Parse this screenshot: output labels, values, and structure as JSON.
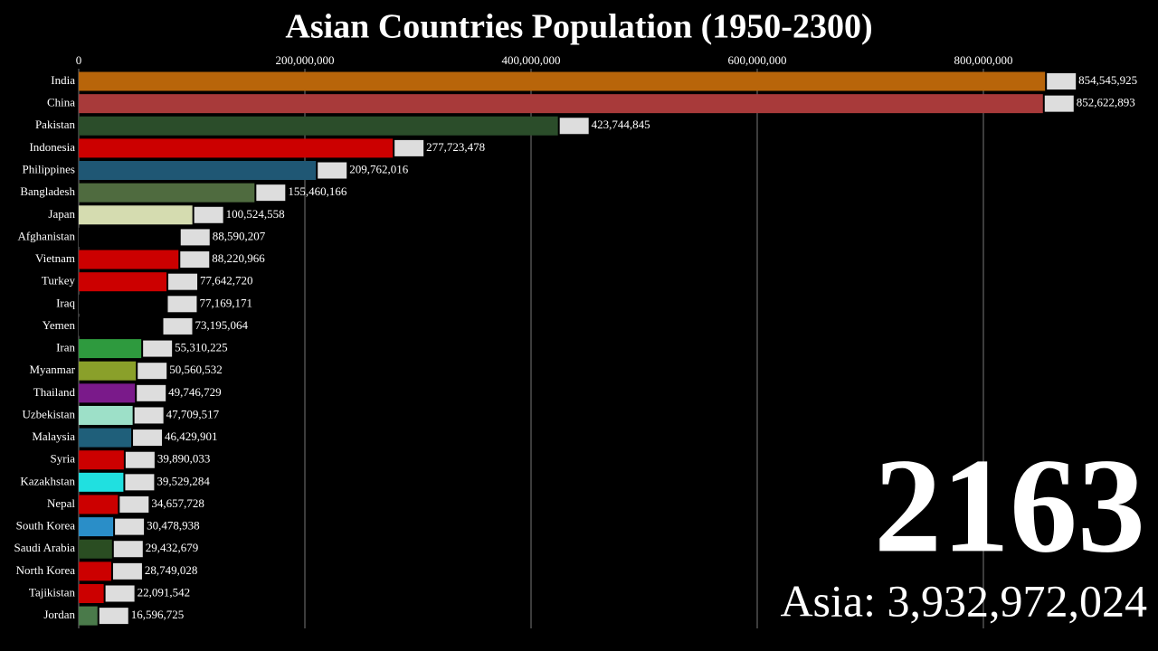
{
  "chart_data": {
    "type": "bar",
    "orientation": "horizontal",
    "title": "Asian Countries Population (1950-2300)",
    "year": "2163",
    "total_label": "Asia: 3,932,972,024",
    "categories": [
      "India",
      "China",
      "Pakistan",
      "Indonesia",
      "Philippines",
      "Bangladesh",
      "Japan",
      "Afghanistan",
      "Vietnam",
      "Turkey",
      "Iraq",
      "Yemen",
      "Iran",
      "Myanmar",
      "Thailand",
      "Uzbekistan",
      "Malaysia",
      "Syria",
      "Kazakhstan",
      "Nepal",
      "South Korea",
      "Saudi Arabia",
      "North Korea",
      "Tajikistan",
      "Jordan"
    ],
    "values": [
      854545925,
      852622893,
      423744845,
      277723478,
      209762016,
      155460166,
      100524558,
      88590207,
      88220966,
      77642720,
      77169171,
      73195064,
      55310225,
      50560532,
      49746729,
      47709517,
      46429901,
      39890033,
      39529284,
      34657728,
      30478938,
      29432679,
      28749028,
      22091542,
      16596725
    ],
    "value_labels": [
      "854,545,925",
      "852,622,893",
      "423,744,845",
      "277,723,478",
      "209,762,016",
      "155,460,166",
      "100,524,558",
      "88,590,207",
      "88,220,966",
      "77,642,720",
      "77,169,171",
      "73,195,064",
      "55,310,225",
      "50,560,532",
      "49,746,729",
      "47,709,517",
      "46,429,901",
      "39,890,033",
      "39,529,284",
      "34,657,728",
      "30,478,938",
      "29,432,679",
      "28,749,028",
      "22,091,542",
      "16,596,725"
    ],
    "colors": [
      "#b8650a",
      "#a83a3a",
      "#2b4d2a",
      "#cc0000",
      "#1f5774",
      "#4f6b3f",
      "#d5dcb0",
      "#000000",
      "#cc0000",
      "#cc0000",
      "#000000",
      "#000000",
      "#2e9a3e",
      "#8aa02a",
      "#7a1a8a",
      "#9de0c8",
      "#1f5f7a",
      "#cc0000",
      "#20e0e0",
      "#cc0000",
      "#2a8ec8",
      "#2a4d22",
      "#cc0000",
      "#cc0000",
      "#4a7a4a"
    ],
    "xlim": [
      0,
      860000000
    ],
    "xticks": [
      0,
      {
        "value": 200000000,
        "label": "200,000,000"
      },
      {
        "value": 400000000,
        "label": "400,000,000"
      },
      {
        "value": 600000000,
        "label": "600,000,000"
      },
      {
        "value": 800000000,
        "label": "800,000,000"
      }
    ],
    "grid": true
  }
}
